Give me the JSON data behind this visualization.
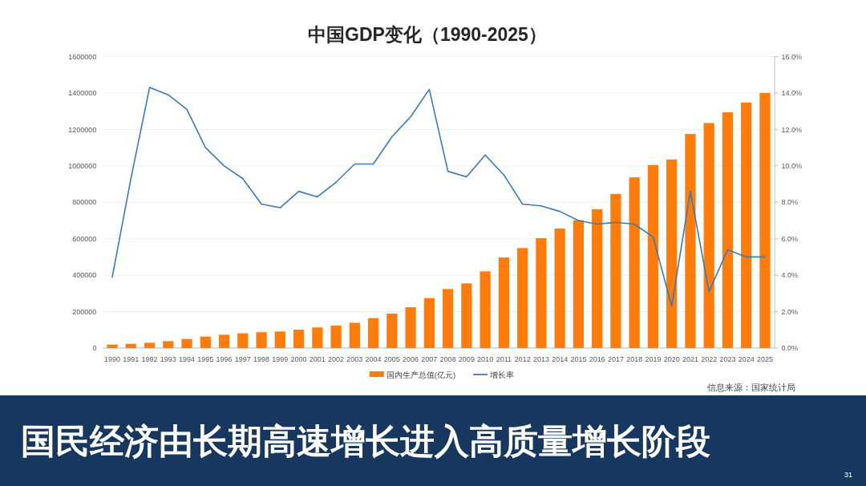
{
  "chart_data": {
    "type": "bar",
    "title": "中国GDP变化（1990-2025）",
    "subtitle": "国民经济由长期高速增长进入高质量增长阶段",
    "categories": [
      "1990",
      "1991",
      "1992",
      "1993",
      "1994",
      "1995",
      "1996",
      "1997",
      "1998",
      "1999",
      "2000",
      "2001",
      "2002",
      "2003",
      "2004",
      "2005",
      "2006",
      "2007",
      "2008",
      "2009",
      "2010",
      "2011",
      "2012",
      "2013",
      "2014",
      "2015",
      "2016",
      "2017",
      "2018",
      "2019",
      "2020",
      "2021",
      "2022",
      "2023",
      "2024",
      "2025"
    ],
    "series": [
      {
        "name": "国内生产总值(亿元)",
        "color": "#fe7c0b",
        "values": [
          19000,
          23000,
          29000,
          38000,
          50000,
          63000,
          73000,
          81000,
          87000,
          91000,
          101000,
          113000,
          123000,
          139000,
          164000,
          189000,
          224000,
          274000,
          324000,
          355000,
          421000,
          497000,
          549000,
          603000,
          656000,
          702000,
          762000,
          846000,
          937000,
          1004000,
          1035000,
          1175000,
          1235000,
          1294000,
          1348000,
          1400000
        ]
      },
      {
        "name": "增长率",
        "type": "line",
        "axis": "y2",
        "color": "#3b7ab8",
        "values": [
          3.9,
          9.3,
          14.3,
          13.9,
          13.1,
          11.0,
          10.0,
          9.3,
          7.9,
          7.7,
          8.6,
          8.3,
          9.1,
          10.1,
          10.1,
          11.6,
          12.7,
          14.2,
          9.7,
          9.4,
          10.6,
          9.5,
          7.9,
          7.8,
          7.5,
          7.0,
          6.8,
          6.9,
          6.8,
          6.1,
          2.3,
          8.6,
          3.1,
          5.4,
          5.0,
          5.0
        ]
      }
    ],
    "ylim": [
      0,
      1600000
    ],
    "yticks": [
      0,
      200000,
      400000,
      600000,
      800000,
      1000000,
      1200000,
      1400000,
      1600000
    ],
    "y2lim": [
      0,
      16
    ],
    "y2ticks": [
      {
        "value": 0,
        "label": "0.0%"
      },
      {
        "value": 2,
        "label": "2.0%"
      },
      {
        "value": 4,
        "label": "4.0%"
      },
      {
        "value": 6,
        "label": "6.0%"
      },
      {
        "value": 8,
        "label": "8.0%"
      },
      {
        "value": 10,
        "label": "10.0%"
      },
      {
        "value": 12,
        "label": "12.0%"
      },
      {
        "value": 14,
        "label": "14.0%"
      },
      {
        "value": 16,
        "label": "16.0%"
      }
    ],
    "grid": "y",
    "legend": "bottom",
    "annotations": [
      "信息来源：国家统计局",
      "31"
    ]
  }
}
